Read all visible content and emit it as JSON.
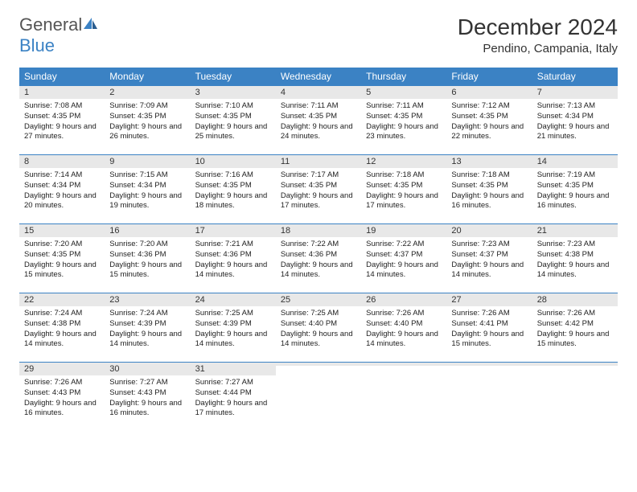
{
  "brand": {
    "name_gray": "General",
    "name_blue": "Blue"
  },
  "title": "December 2024",
  "location": "Pendino, Campania, Italy",
  "header_bg": "#3b82c4",
  "daynum_bg": "#e8e8e8",
  "border_color": "#3b82c4",
  "days_of_week": [
    "Sunday",
    "Monday",
    "Tuesday",
    "Wednesday",
    "Thursday",
    "Friday",
    "Saturday"
  ],
  "weeks": [
    [
      {
        "n": "1",
        "sunrise": "Sunrise: 7:08 AM",
        "sunset": "Sunset: 4:35 PM",
        "daylight": "Daylight: 9 hours and 27 minutes."
      },
      {
        "n": "2",
        "sunrise": "Sunrise: 7:09 AM",
        "sunset": "Sunset: 4:35 PM",
        "daylight": "Daylight: 9 hours and 26 minutes."
      },
      {
        "n": "3",
        "sunrise": "Sunrise: 7:10 AM",
        "sunset": "Sunset: 4:35 PM",
        "daylight": "Daylight: 9 hours and 25 minutes."
      },
      {
        "n": "4",
        "sunrise": "Sunrise: 7:11 AM",
        "sunset": "Sunset: 4:35 PM",
        "daylight": "Daylight: 9 hours and 24 minutes."
      },
      {
        "n": "5",
        "sunrise": "Sunrise: 7:11 AM",
        "sunset": "Sunset: 4:35 PM",
        "daylight": "Daylight: 9 hours and 23 minutes."
      },
      {
        "n": "6",
        "sunrise": "Sunrise: 7:12 AM",
        "sunset": "Sunset: 4:35 PM",
        "daylight": "Daylight: 9 hours and 22 minutes."
      },
      {
        "n": "7",
        "sunrise": "Sunrise: 7:13 AM",
        "sunset": "Sunset: 4:34 PM",
        "daylight": "Daylight: 9 hours and 21 minutes."
      }
    ],
    [
      {
        "n": "8",
        "sunrise": "Sunrise: 7:14 AM",
        "sunset": "Sunset: 4:34 PM",
        "daylight": "Daylight: 9 hours and 20 minutes."
      },
      {
        "n": "9",
        "sunrise": "Sunrise: 7:15 AM",
        "sunset": "Sunset: 4:34 PM",
        "daylight": "Daylight: 9 hours and 19 minutes."
      },
      {
        "n": "10",
        "sunrise": "Sunrise: 7:16 AM",
        "sunset": "Sunset: 4:35 PM",
        "daylight": "Daylight: 9 hours and 18 minutes."
      },
      {
        "n": "11",
        "sunrise": "Sunrise: 7:17 AM",
        "sunset": "Sunset: 4:35 PM",
        "daylight": "Daylight: 9 hours and 17 minutes."
      },
      {
        "n": "12",
        "sunrise": "Sunrise: 7:18 AM",
        "sunset": "Sunset: 4:35 PM",
        "daylight": "Daylight: 9 hours and 17 minutes."
      },
      {
        "n": "13",
        "sunrise": "Sunrise: 7:18 AM",
        "sunset": "Sunset: 4:35 PM",
        "daylight": "Daylight: 9 hours and 16 minutes."
      },
      {
        "n": "14",
        "sunrise": "Sunrise: 7:19 AM",
        "sunset": "Sunset: 4:35 PM",
        "daylight": "Daylight: 9 hours and 16 minutes."
      }
    ],
    [
      {
        "n": "15",
        "sunrise": "Sunrise: 7:20 AM",
        "sunset": "Sunset: 4:35 PM",
        "daylight": "Daylight: 9 hours and 15 minutes."
      },
      {
        "n": "16",
        "sunrise": "Sunrise: 7:20 AM",
        "sunset": "Sunset: 4:36 PM",
        "daylight": "Daylight: 9 hours and 15 minutes."
      },
      {
        "n": "17",
        "sunrise": "Sunrise: 7:21 AM",
        "sunset": "Sunset: 4:36 PM",
        "daylight": "Daylight: 9 hours and 14 minutes."
      },
      {
        "n": "18",
        "sunrise": "Sunrise: 7:22 AM",
        "sunset": "Sunset: 4:36 PM",
        "daylight": "Daylight: 9 hours and 14 minutes."
      },
      {
        "n": "19",
        "sunrise": "Sunrise: 7:22 AM",
        "sunset": "Sunset: 4:37 PM",
        "daylight": "Daylight: 9 hours and 14 minutes."
      },
      {
        "n": "20",
        "sunrise": "Sunrise: 7:23 AM",
        "sunset": "Sunset: 4:37 PM",
        "daylight": "Daylight: 9 hours and 14 minutes."
      },
      {
        "n": "21",
        "sunrise": "Sunrise: 7:23 AM",
        "sunset": "Sunset: 4:38 PM",
        "daylight": "Daylight: 9 hours and 14 minutes."
      }
    ],
    [
      {
        "n": "22",
        "sunrise": "Sunrise: 7:24 AM",
        "sunset": "Sunset: 4:38 PM",
        "daylight": "Daylight: 9 hours and 14 minutes."
      },
      {
        "n": "23",
        "sunrise": "Sunrise: 7:24 AM",
        "sunset": "Sunset: 4:39 PM",
        "daylight": "Daylight: 9 hours and 14 minutes."
      },
      {
        "n": "24",
        "sunrise": "Sunrise: 7:25 AM",
        "sunset": "Sunset: 4:39 PM",
        "daylight": "Daylight: 9 hours and 14 minutes."
      },
      {
        "n": "25",
        "sunrise": "Sunrise: 7:25 AM",
        "sunset": "Sunset: 4:40 PM",
        "daylight": "Daylight: 9 hours and 14 minutes."
      },
      {
        "n": "26",
        "sunrise": "Sunrise: 7:26 AM",
        "sunset": "Sunset: 4:40 PM",
        "daylight": "Daylight: 9 hours and 14 minutes."
      },
      {
        "n": "27",
        "sunrise": "Sunrise: 7:26 AM",
        "sunset": "Sunset: 4:41 PM",
        "daylight": "Daylight: 9 hours and 15 minutes."
      },
      {
        "n": "28",
        "sunrise": "Sunrise: 7:26 AM",
        "sunset": "Sunset: 4:42 PM",
        "daylight": "Daylight: 9 hours and 15 minutes."
      }
    ],
    [
      {
        "n": "29",
        "sunrise": "Sunrise: 7:26 AM",
        "sunset": "Sunset: 4:43 PM",
        "daylight": "Daylight: 9 hours and 16 minutes."
      },
      {
        "n": "30",
        "sunrise": "Sunrise: 7:27 AM",
        "sunset": "Sunset: 4:43 PM",
        "daylight": "Daylight: 9 hours and 16 minutes."
      },
      {
        "n": "31",
        "sunrise": "Sunrise: 7:27 AM",
        "sunset": "Sunset: 4:44 PM",
        "daylight": "Daylight: 9 hours and 17 minutes."
      },
      {
        "n": "",
        "sunrise": "",
        "sunset": "",
        "daylight": ""
      },
      {
        "n": "",
        "sunrise": "",
        "sunset": "",
        "daylight": ""
      },
      {
        "n": "",
        "sunrise": "",
        "sunset": "",
        "daylight": ""
      },
      {
        "n": "",
        "sunrise": "",
        "sunset": "",
        "daylight": ""
      }
    ]
  ]
}
